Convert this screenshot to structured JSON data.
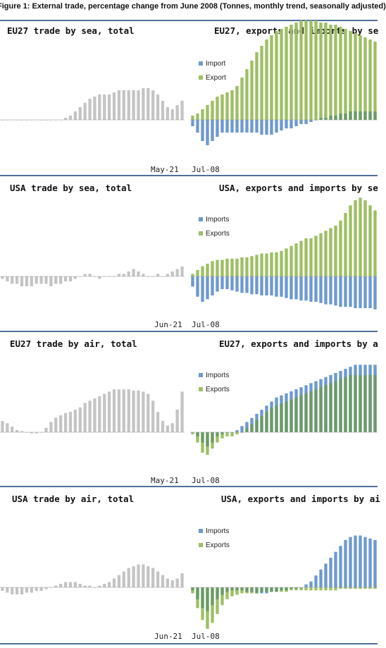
{
  "figure_title": "Figure 1: External trade, percentage change from June 2008 (Tonnes, monthly trend, seasonally adjusted)",
  "colors": {
    "total": "#c4c4c4",
    "import": "#6d99cf",
    "export": "#9dbf63",
    "overlap": "#6b9a68",
    "rule": "#4f6f9c"
  },
  "chart_data": [
    {
      "type": "bar",
      "title": "EU27 trade by sea, total",
      "x_end_label": "May-21",
      "series": [
        {
          "name": "",
          "values": [
            0,
            0,
            0,
            0,
            0,
            0,
            0,
            0,
            0,
            0,
            0,
            0,
            0,
            1,
            2,
            4,
            6,
            8,
            10,
            11,
            12,
            12,
            12,
            13,
            14,
            14,
            14,
            14,
            14,
            15,
            15,
            14,
            12,
            9,
            6,
            5,
            7,
            9
          ]
        }
      ]
    },
    {
      "type": "bar",
      "title": "EU27, exports and imports by se",
      "x_start_label": "Jul-08",
      "series": [
        {
          "name": "Import",
          "values": [
            -3,
            -6,
            -10,
            -12,
            -10,
            -8,
            -6,
            -6,
            -6,
            -6,
            -6,
            -6,
            -6,
            -6,
            -7,
            -7,
            -7,
            -6,
            -5,
            -4,
            -4,
            -3,
            -2,
            -2,
            -1,
            0,
            1,
            1,
            2,
            2,
            3,
            3,
            4,
            4,
            4,
            4,
            4,
            4
          ]
        },
        {
          "name": "Export",
          "values": [
            2,
            3,
            5,
            7,
            9,
            11,
            12,
            13,
            14,
            16,
            20,
            24,
            28,
            32,
            35,
            38,
            40,
            42,
            43,
            44,
            45,
            46,
            47,
            47,
            47,
            47,
            46,
            46,
            45,
            45,
            44,
            43,
            42,
            41,
            40,
            39,
            38,
            37
          ]
        }
      ]
    },
    {
      "type": "bar",
      "title": "USA trade by sea, total",
      "x_end_label": "Jun-21",
      "series": [
        {
          "name": "",
          "values": [
            -1,
            -2,
            -3,
            -3,
            -4,
            -4,
            -4,
            -3,
            -3,
            -3,
            -4,
            -3,
            -3,
            -2,
            -2,
            -1,
            0,
            1,
            1,
            0,
            -1,
            0,
            0,
            0,
            1,
            1,
            2,
            3,
            2,
            1,
            0,
            0,
            1,
            0,
            1,
            2,
            3,
            4
          ]
        }
      ]
    },
    {
      "type": "bar",
      "title": "USA, exports and imports by se",
      "x_start_label": "Jul-08",
      "series": [
        {
          "name": "Imports",
          "values": [
            -8,
            -16,
            -20,
            -18,
            -15,
            -12,
            -10,
            -10,
            -11,
            -12,
            -13,
            -13,
            -14,
            -14,
            -15,
            -15,
            -15,
            -16,
            -16,
            -17,
            -18,
            -18,
            -19,
            -19,
            -20,
            -20,
            -21,
            -22,
            -22,
            -23,
            -24,
            -24,
            -24,
            -25,
            -25,
            -25,
            -25,
            -26
          ]
        },
        {
          "name": "Exports",
          "values": [
            2,
            5,
            8,
            10,
            12,
            13,
            13,
            14,
            14,
            14,
            15,
            15,
            16,
            17,
            18,
            18,
            19,
            19,
            20,
            22,
            24,
            26,
            28,
            30,
            30,
            32,
            34,
            36,
            38,
            40,
            44,
            50,
            56,
            60,
            62,
            60,
            56,
            52
          ]
        }
      ]
    },
    {
      "type": "bar",
      "title": "EU27 trade by air, total",
      "x_end_label": "May-21",
      "series": [
        {
          "name": "",
          "values": [
            10,
            8,
            5,
            2,
            1,
            0,
            -1,
            -1,
            0,
            4,
            9,
            13,
            15,
            17,
            18,
            20,
            22,
            26,
            28,
            30,
            32,
            34,
            36,
            38,
            38,
            38,
            38,
            37,
            37,
            36,
            34,
            28,
            18,
            10,
            6,
            8,
            20,
            36
          ]
        }
      ]
    },
    {
      "type": "bar",
      "title": "EU27, exports and imports by a",
      "x_start_label": "Jul-08",
      "series": [
        {
          "name": "Imports",
          "values": [
            0,
            -4,
            -10,
            -14,
            -10,
            -4,
            -2,
            0,
            0,
            2,
            6,
            10,
            14,
            18,
            22,
            26,
            30,
            34,
            36,
            38,
            40,
            42,
            44,
            46,
            48,
            50,
            52,
            54,
            56,
            58,
            60,
            62,
            64,
            66,
            66,
            66,
            66,
            66
          ]
        },
        {
          "name": "Exports",
          "values": [
            -2,
            -10,
            -20,
            -22,
            -16,
            -10,
            -6,
            -4,
            -4,
            -2,
            0,
            4,
            8,
            12,
            16,
            20,
            24,
            26,
            28,
            30,
            32,
            34,
            36,
            38,
            40,
            42,
            44,
            46,
            48,
            50,
            52,
            54,
            56,
            56,
            56,
            56,
            56,
            56
          ]
        }
      ]
    },
    {
      "type": "bar",
      "title": "USA trade by air, total",
      "x_end_label": "Jun-21",
      "series": [
        {
          "name": "",
          "values": [
            -2,
            -3,
            -4,
            -4,
            -4,
            -3,
            -3,
            -2,
            -2,
            -1,
            0,
            1,
            2,
            3,
            3,
            3,
            2,
            1,
            1,
            0,
            1,
            2,
            3,
            5,
            7,
            9,
            11,
            12,
            13,
            13,
            12,
            11,
            9,
            7,
            5,
            4,
            5,
            8
          ]
        }
      ]
    },
    {
      "type": "bar",
      "title": "USA, exports and imports by ai",
      "x_start_label": "Jul-08",
      "series": [
        {
          "name": "Imports",
          "values": [
            -2,
            -8,
            -14,
            -16,
            -12,
            -8,
            -5,
            -3,
            -2,
            -2,
            -2,
            -3,
            -3,
            -4,
            -4,
            -4,
            -3,
            -3,
            -2,
            -2,
            -1,
            -1,
            0,
            2,
            4,
            8,
            12,
            16,
            20,
            24,
            28,
            32,
            34,
            35,
            35,
            34,
            33,
            32
          ]
        },
        {
          "name": "Exports",
          "values": [
            -4,
            -14,
            -22,
            -28,
            -24,
            -18,
            -12,
            -8,
            -6,
            -5,
            -4,
            -4,
            -4,
            -4,
            -3,
            -3,
            -3,
            -3,
            -3,
            -3,
            -2,
            -2,
            -2,
            -2,
            -2,
            -2,
            -2,
            -2,
            -2,
            -2,
            -1,
            -1,
            -1,
            -1,
            -1,
            -1,
            -1,
            -1
          ]
        }
      ]
    }
  ]
}
